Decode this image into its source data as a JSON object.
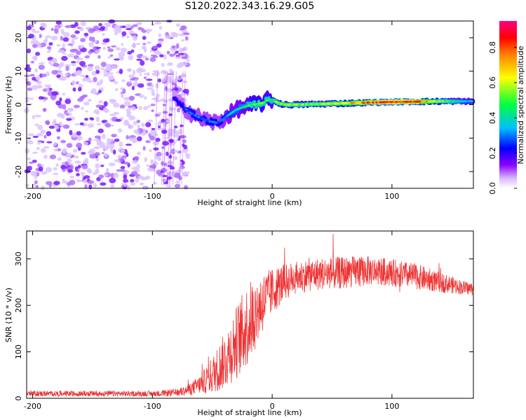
{
  "title": "S120.2022.343.16.29.G05",
  "chart_data": [
    {
      "type": "heatmap",
      "xlabel": "Height of straight line (km)",
      "ylabel": "Frequency (Hz)",
      "xlim": [
        -205,
        168
      ],
      "ylim": [
        -25,
        25
      ],
      "xticks": [
        -200,
        -100,
        0,
        100
      ],
      "yticks": [
        -20,
        -10,
        0,
        10,
        20
      ],
      "grid": false,
      "colorbar": {
        "label": "Normalized spectral amplitude",
        "range": [
          0,
          0.95
        ],
        "ticks": [
          0.0,
          0.2,
          0.4,
          0.6,
          0.8
        ],
        "colors": [
          "#ffffff",
          "#8b00ff",
          "#0000ff",
          "#00bfff",
          "#00ff00",
          "#ffff00",
          "#ff8000",
          "#ff0000",
          "#ff0080"
        ]
      },
      "ridge": {
        "x": [
          -82,
          -75,
          -68,
          -60,
          -52,
          -45,
          -38,
          -30,
          -22,
          -15,
          -8,
          -3,
          0,
          5,
          10,
          20,
          40,
          60,
          80,
          100,
          120,
          140,
          160,
          168
        ],
        "y": [
          2.0,
          -0.5,
          -2.5,
          -4.0,
          -5.0,
          -5.5,
          -3.5,
          -1.5,
          -0.5,
          0.0,
          0.5,
          1.5,
          1.5,
          0.5,
          0.0,
          0.0,
          0.2,
          0.4,
          0.6,
          0.8,
          0.9,
          1.0,
          1.0,
          1.0
        ],
        "amplitude": [
          0.2,
          0.25,
          0.3,
          0.3,
          0.3,
          0.3,
          0.35,
          0.4,
          0.45,
          0.55,
          0.55,
          0.5,
          0.5,
          0.55,
          0.6,
          0.55,
          0.55,
          0.65,
          0.8,
          0.9,
          0.85,
          0.55,
          0.4,
          0.35
        ]
      },
      "noise_region": {
        "x_from": -205,
        "x_to": -70,
        "amplitude": 0.08
      }
    },
    {
      "type": "line",
      "xlabel": "Height of straight line (km)",
      "ylabel": "SNR (10 * v/v)",
      "xlim": [
        -205,
        168
      ],
      "ylim": [
        0,
        360
      ],
      "xticks": [
        -200,
        -100,
        0,
        100
      ],
      "yticks": [
        0,
        100,
        200,
        300
      ],
      "grid": false,
      "series": [
        {
          "color": "#ee3333",
          "x": [
            -205,
            -180,
            -150,
            -120,
            -100,
            -80,
            -70,
            -60,
            -50,
            -40,
            -30,
            -20,
            -10,
            0,
            10,
            20,
            30,
            40,
            60,
            80,
            100,
            120,
            140,
            160,
            168
          ],
          "y": [
            10,
            10,
            10,
            10,
            10,
            12,
            18,
            30,
            50,
            80,
            120,
            160,
            200,
            230,
            250,
            260,
            265,
            268,
            270,
            275,
            270,
            262,
            250,
            238,
            235
          ],
          "noise_amplitude": [
            6,
            6,
            6,
            6,
            6,
            8,
            12,
            20,
            40,
            60,
            80,
            90,
            70,
            50,
            40,
            35,
            35,
            35,
            35,
            32,
            30,
            28,
            22,
            15,
            14
          ]
        }
      ]
    }
  ]
}
